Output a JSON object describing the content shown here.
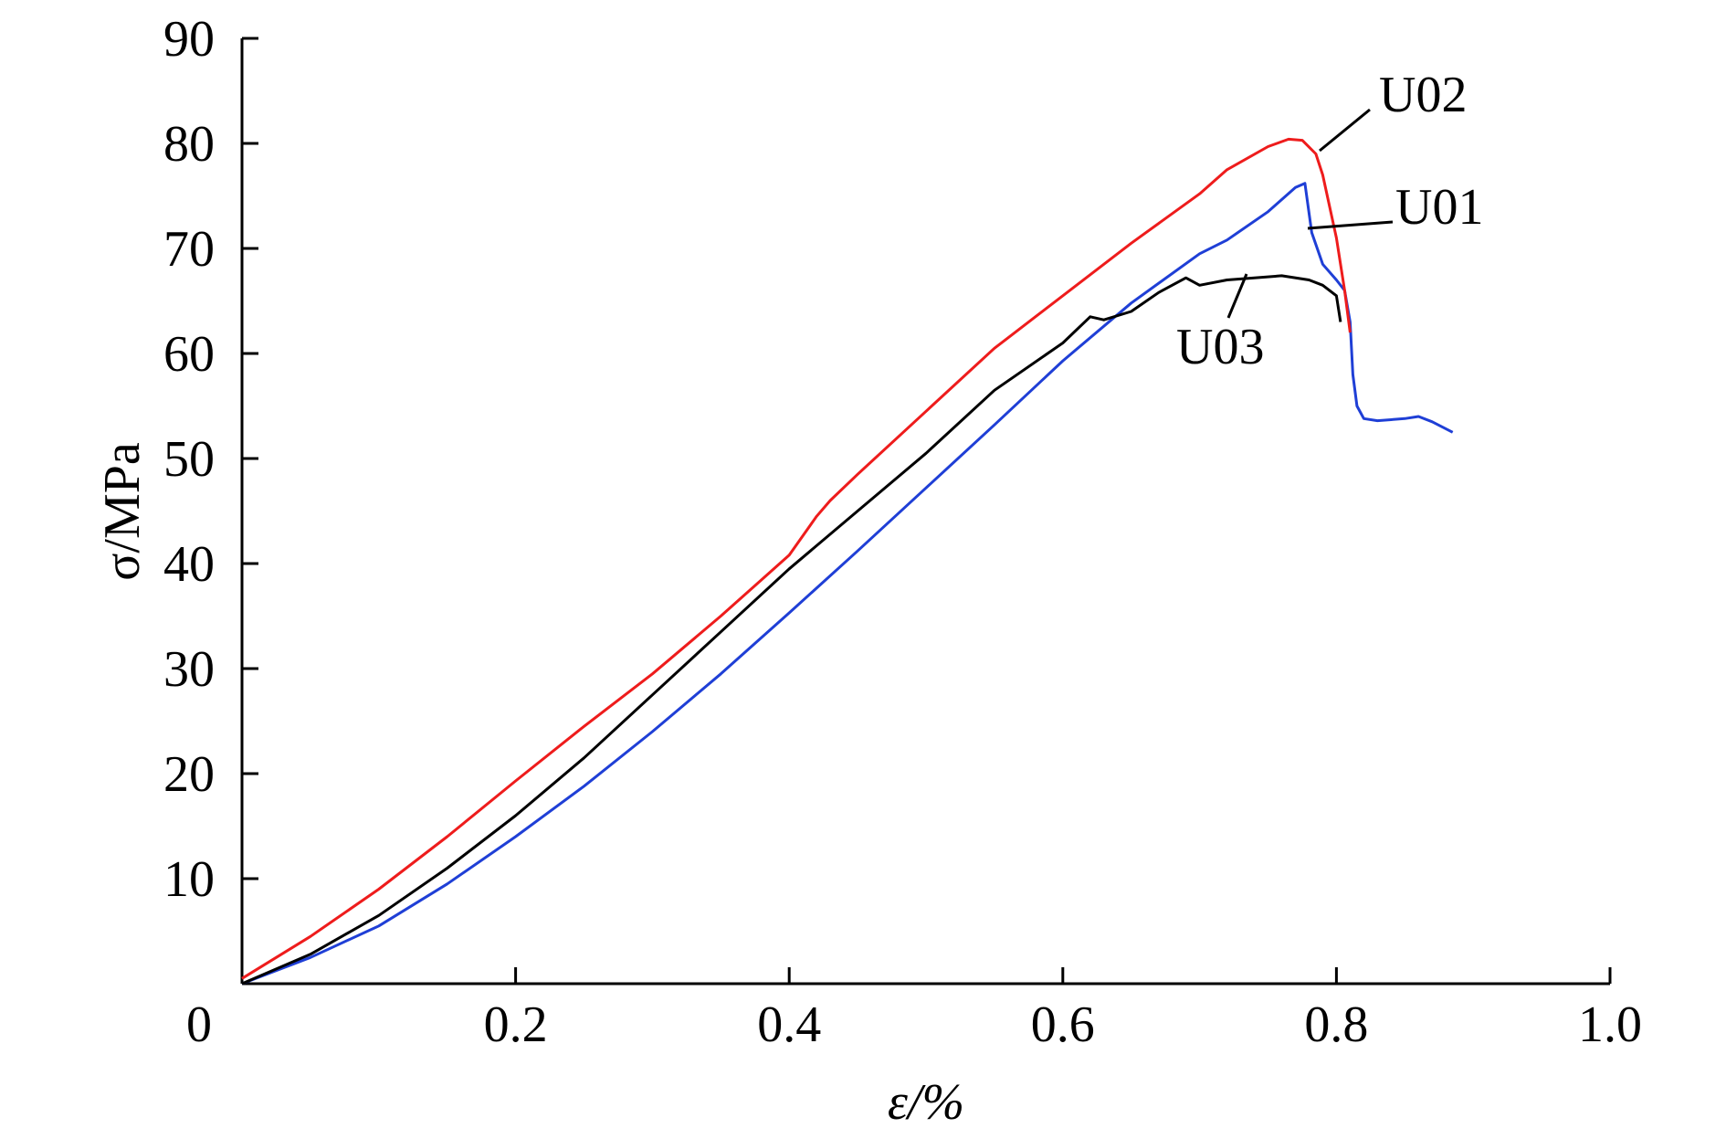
{
  "chart_data": {
    "type": "line",
    "xlabel": "ε/%",
    "ylabel": "σ/MPa",
    "xlim": [
      0,
      1.0
    ],
    "ylim": [
      0,
      90
    ],
    "grid": false,
    "x_ticks": [
      "0.2",
      "0.4",
      "0.6",
      "0.8",
      "1.0"
    ],
    "y_ticks": [
      "10",
      "20",
      "30",
      "40",
      "50",
      "60",
      "70",
      "80",
      "90"
    ],
    "origin_label": "0",
    "series": [
      {
        "name": "U01",
        "color": "#1f3fd6",
        "points": [
          [
            0,
            0
          ],
          [
            0.05,
            2.5
          ],
          [
            0.1,
            5.5
          ],
          [
            0.15,
            9.5
          ],
          [
            0.2,
            14
          ],
          [
            0.25,
            18.8
          ],
          [
            0.3,
            24
          ],
          [
            0.35,
            29.5
          ],
          [
            0.4,
            35.3
          ],
          [
            0.45,
            41.2
          ],
          [
            0.5,
            47.2
          ],
          [
            0.55,
            53.2
          ],
          [
            0.6,
            59.3
          ],
          [
            0.65,
            64.8
          ],
          [
            0.7,
            69.5
          ],
          [
            0.72,
            70.8
          ],
          [
            0.75,
            73.5
          ],
          [
            0.77,
            75.8
          ],
          [
            0.777,
            76.2
          ],
          [
            0.782,
            71.5
          ],
          [
            0.79,
            68.5
          ],
          [
            0.8,
            67
          ],
          [
            0.806,
            66
          ],
          [
            0.81,
            63
          ],
          [
            0.812,
            58
          ],
          [
            0.815,
            55
          ],
          [
            0.82,
            53.8
          ],
          [
            0.83,
            53.6
          ],
          [
            0.85,
            53.8
          ],
          [
            0.86,
            54
          ],
          [
            0.87,
            53.5
          ],
          [
            0.885,
            52.5
          ]
        ]
      },
      {
        "name": "U02",
        "color": "#ee1c1c",
        "points": [
          [
            0,
            0.5
          ],
          [
            0.05,
            4.5
          ],
          [
            0.1,
            9
          ],
          [
            0.15,
            14
          ],
          [
            0.2,
            19.3
          ],
          [
            0.25,
            24.5
          ],
          [
            0.3,
            29.5
          ],
          [
            0.35,
            35
          ],
          [
            0.4,
            40.8
          ],
          [
            0.42,
            44.5
          ],
          [
            0.43,
            46
          ],
          [
            0.45,
            48.5
          ],
          [
            0.5,
            54.5
          ],
          [
            0.55,
            60.5
          ],
          [
            0.56,
            61.5
          ],
          [
            0.58,
            63.5
          ],
          [
            0.6,
            65.5
          ],
          [
            0.65,
            70.5
          ],
          [
            0.7,
            75.2
          ],
          [
            0.72,
            77.5
          ],
          [
            0.75,
            79.7
          ],
          [
            0.765,
            80.4
          ],
          [
            0.775,
            80.3
          ],
          [
            0.785,
            79
          ],
          [
            0.79,
            77
          ],
          [
            0.8,
            71
          ],
          [
            0.806,
            66
          ],
          [
            0.81,
            62
          ]
        ]
      },
      {
        "name": "U03",
        "color": "#000000",
        "points": [
          [
            0,
            0
          ],
          [
            0.05,
            2.8
          ],
          [
            0.1,
            6.5
          ],
          [
            0.15,
            11
          ],
          [
            0.2,
            16
          ],
          [
            0.25,
            21.5
          ],
          [
            0.3,
            27.5
          ],
          [
            0.35,
            33.5
          ],
          [
            0.4,
            39.5
          ],
          [
            0.45,
            45
          ],
          [
            0.5,
            50.5
          ],
          [
            0.55,
            56.5
          ],
          [
            0.6,
            61
          ],
          [
            0.62,
            63.5
          ],
          [
            0.63,
            63.2
          ],
          [
            0.65,
            64
          ],
          [
            0.67,
            65.8
          ],
          [
            0.69,
            67.2
          ],
          [
            0.7,
            66.5
          ],
          [
            0.72,
            67
          ],
          [
            0.74,
            67.2
          ],
          [
            0.76,
            67.4
          ],
          [
            0.78,
            67
          ],
          [
            0.79,
            66.5
          ],
          [
            0.8,
            65.5
          ],
          [
            0.803,
            63
          ]
        ]
      }
    ],
    "annotations": [
      {
        "text": "U02",
        "series": "U02"
      },
      {
        "text": "U01",
        "series": "U01"
      },
      {
        "text": "U03",
        "series": "U03"
      }
    ]
  }
}
